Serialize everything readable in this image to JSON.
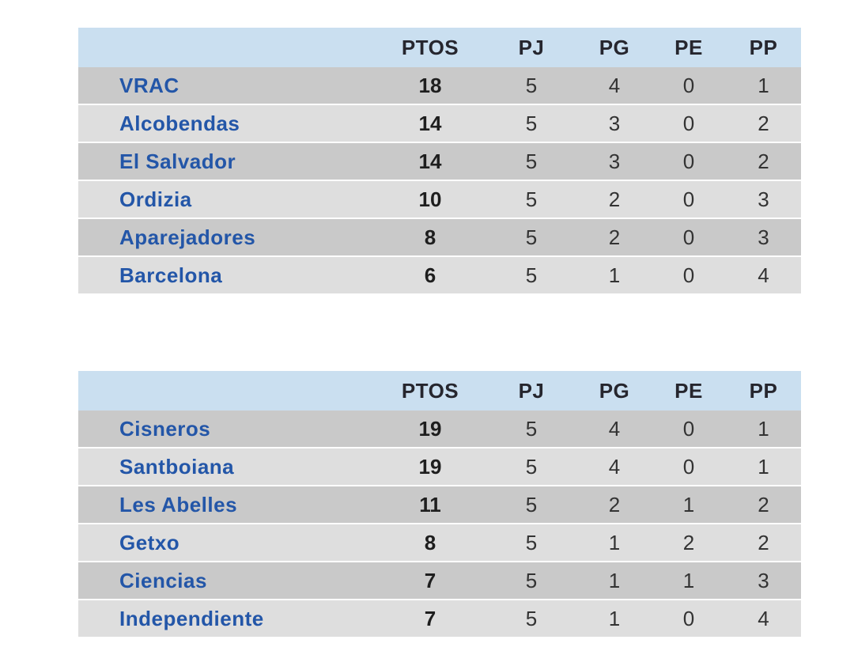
{
  "colors": {
    "header_background": "#cadff0",
    "row_dark": "#c9c9c9",
    "row_light": "#dedede",
    "team_link_blue": "#2356a8",
    "header_text": "#26262e",
    "number_text": "#333333",
    "page_background": "#ffffff"
  },
  "chart_data": [
    {
      "type": "table",
      "columns": [
        "",
        "PTOS",
        "PJ",
        "PG",
        "PE",
        "PP"
      ],
      "rows": [
        [
          "VRAC",
          18,
          5,
          4,
          0,
          1
        ],
        [
          "Alcobendas",
          14,
          5,
          3,
          0,
          2
        ],
        [
          "El Salvador",
          14,
          5,
          3,
          0,
          2
        ],
        [
          "Ordizia",
          10,
          5,
          2,
          0,
          3
        ],
        [
          "Aparejadores",
          8,
          5,
          2,
          0,
          3
        ],
        [
          "Barcelona",
          6,
          5,
          1,
          0,
          4
        ]
      ]
    },
    {
      "type": "table",
      "columns": [
        "",
        "PTOS",
        "PJ",
        "PG",
        "PE",
        "PP"
      ],
      "rows": [
        [
          "Cisneros",
          19,
          5,
          4,
          0,
          1
        ],
        [
          "Santboiana",
          19,
          5,
          4,
          0,
          1
        ],
        [
          "Les Abelles",
          11,
          5,
          2,
          1,
          2
        ],
        [
          "Getxo",
          8,
          5,
          1,
          2,
          2
        ],
        [
          "Ciencias",
          7,
          5,
          1,
          1,
          3
        ],
        [
          "Independiente",
          7,
          5,
          1,
          0,
          4
        ]
      ]
    }
  ]
}
